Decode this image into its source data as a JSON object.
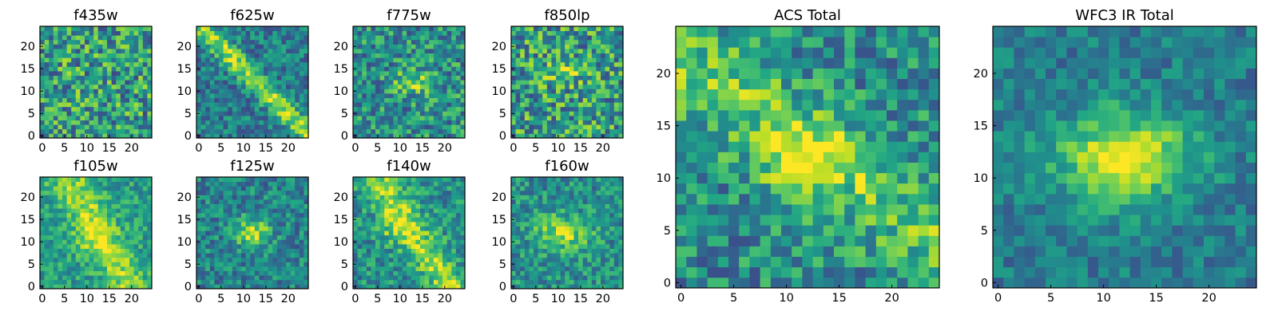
{
  "figure": {
    "background": "#ffffff",
    "colormap": "viridis"
  },
  "chart_data": [
    {
      "type": "heatmap",
      "title": "f435w",
      "grid_size": 25,
      "xlim": [
        0,
        24
      ],
      "ylim": [
        0,
        24
      ],
      "xticks": [
        0,
        5,
        10,
        15,
        20
      ],
      "yticks": [
        0,
        5,
        10,
        15,
        20
      ],
      "xtick_labels": [
        "0",
        "5",
        "10",
        "15",
        "20"
      ],
      "ytick_labels": [
        "0",
        "5",
        "10",
        "15",
        "20"
      ],
      "pattern": "noise",
      "seed": 11,
      "features": [],
      "noise_level": 0.55,
      "base": 0.55
    },
    {
      "type": "heatmap",
      "title": "f625w",
      "grid_size": 25,
      "xlim": [
        0,
        24
      ],
      "ylim": [
        0,
        24
      ],
      "xticks": [
        0,
        5,
        10,
        15,
        20
      ],
      "yticks": [
        0,
        5,
        10,
        15,
        20
      ],
      "xtick_labels": [
        "0",
        "5",
        "10",
        "15",
        "20"
      ],
      "ytick_labels": [
        "0",
        "5",
        "10",
        "15",
        "20"
      ],
      "pattern": "diagonal",
      "seed": 23,
      "features": [
        {
          "kind": "band",
          "angle": -45,
          "offset": 0,
          "width": 1.6,
          "amp": 0.45
        }
      ],
      "noise_level": 0.35,
      "base": 0.42
    },
    {
      "type": "heatmap",
      "title": "f775w",
      "grid_size": 25,
      "xlim": [
        0,
        24
      ],
      "ylim": [
        0,
        24
      ],
      "xticks": [
        0,
        5,
        10,
        15,
        20
      ],
      "yticks": [
        0,
        5,
        10,
        15,
        20
      ],
      "xtick_labels": [
        "0",
        "5",
        "10",
        "15",
        "20"
      ],
      "ytick_labels": [
        "0",
        "5",
        "10",
        "15",
        "20"
      ],
      "pattern": "blob",
      "seed": 37,
      "features": [
        {
          "kind": "blob",
          "cx": 13,
          "cy": 12,
          "sx": 3,
          "sy": 1.8,
          "amp": 0.35
        }
      ],
      "noise_level": 0.45,
      "base": 0.5
    },
    {
      "type": "heatmap",
      "title": "f850lp",
      "grid_size": 25,
      "xlim": [
        0,
        24
      ],
      "ylim": [
        0,
        24
      ],
      "xticks": [
        0,
        5,
        10,
        15,
        20
      ],
      "yticks": [
        0,
        5,
        10,
        15,
        20
      ],
      "xtick_labels": [
        "0",
        "5",
        "10",
        "15",
        "20"
      ],
      "ytick_labels": [
        "0",
        "5",
        "10",
        "15",
        "20"
      ],
      "pattern": "noise",
      "seed": 41,
      "features": [
        {
          "kind": "blob",
          "cx": 11,
          "cy": 14,
          "sx": 3,
          "sy": 2,
          "amp": 0.2
        }
      ],
      "noise_level": 0.55,
      "base": 0.55
    },
    {
      "type": "heatmap",
      "title": "f105w",
      "grid_size": 25,
      "xlim": [
        0,
        24
      ],
      "ylim": [
        0,
        24
      ],
      "xticks": [
        0,
        5,
        10,
        15,
        20
      ],
      "yticks": [
        0,
        5,
        10,
        15,
        20
      ],
      "xtick_labels": [
        "0",
        "5",
        "10",
        "15",
        "20"
      ],
      "ytick_labels": [
        "0",
        "5",
        "10",
        "15",
        "20"
      ],
      "pattern": "band",
      "seed": 53,
      "features": [
        {
          "kind": "band",
          "angle": -60,
          "offset": 0,
          "width": 3,
          "amp": 0.3
        },
        {
          "kind": "blob",
          "cx": 11,
          "cy": 11,
          "sx": 3,
          "sy": 3,
          "amp": 0.15
        }
      ],
      "noise_level": 0.3,
      "base": 0.55
    },
    {
      "type": "heatmap",
      "title": "f125w",
      "grid_size": 25,
      "xlim": [
        0,
        24
      ],
      "ylim": [
        0,
        24
      ],
      "xticks": [
        0,
        5,
        10,
        15,
        20
      ],
      "yticks": [
        0,
        5,
        10,
        15,
        20
      ],
      "xtick_labels": [
        "0",
        "5",
        "10",
        "15",
        "20"
      ],
      "ytick_labels": [
        "0",
        "5",
        "10",
        "15",
        "20"
      ],
      "pattern": "blob",
      "seed": 67,
      "features": [
        {
          "kind": "blob",
          "cx": 12,
          "cy": 12,
          "sx": 2.8,
          "sy": 2.2,
          "amp": 0.45
        }
      ],
      "noise_level": 0.35,
      "base": 0.45
    },
    {
      "type": "heatmap",
      "title": "f140w",
      "grid_size": 25,
      "xlim": [
        0,
        24
      ],
      "ylim": [
        0,
        24
      ],
      "xticks": [
        0,
        5,
        10,
        15,
        20
      ],
      "yticks": [
        0,
        5,
        10,
        15,
        20
      ],
      "xtick_labels": [
        "0",
        "5",
        "10",
        "15",
        "20"
      ],
      "ytick_labels": [
        "0",
        "5",
        "10",
        "15",
        "20"
      ],
      "pattern": "band",
      "seed": 79,
      "features": [
        {
          "kind": "band",
          "angle": -55,
          "offset": 0,
          "width": 2.6,
          "amp": 0.35
        },
        {
          "kind": "blob",
          "cx": 9,
          "cy": 13,
          "sx": 3,
          "sy": 2.5,
          "amp": 0.2
        }
      ],
      "noise_level": 0.35,
      "base": 0.5
    },
    {
      "type": "heatmap",
      "title": "f160w",
      "grid_size": 25,
      "xlim": [
        0,
        24
      ],
      "ylim": [
        0,
        24
      ],
      "xticks": [
        0,
        5,
        10,
        15,
        20
      ],
      "yticks": [
        0,
        5,
        10,
        15,
        20
      ],
      "xtick_labels": [
        "0",
        "5",
        "10",
        "15",
        "20"
      ],
      "ytick_labels": [
        "0",
        "5",
        "10",
        "15",
        "20"
      ],
      "pattern": "blob",
      "seed": 83,
      "features": [
        {
          "kind": "blob",
          "cx": 11,
          "cy": 12,
          "sx": 4,
          "sy": 2.6,
          "amp": 0.4
        }
      ],
      "noise_level": 0.35,
      "base": 0.5
    },
    {
      "type": "heatmap",
      "title": "ACS Total",
      "grid_size": 25,
      "xlim": [
        0,
        24
      ],
      "ylim": [
        0,
        24
      ],
      "xticks": [
        0,
        5,
        10,
        15,
        20
      ],
      "yticks": [
        0,
        5,
        10,
        15,
        20
      ],
      "xtick_labels": [
        "0",
        "5",
        "10",
        "15",
        "20"
      ],
      "ytick_labels": [
        "0",
        "5",
        "10",
        "15",
        "20"
      ],
      "pattern": "band+blob",
      "seed": 97,
      "features": [
        {
          "kind": "band",
          "angle": -35,
          "offset": 0,
          "width": 3.2,
          "amp": 0.25
        },
        {
          "kind": "blob",
          "cx": 12,
          "cy": 12,
          "sx": 3,
          "sy": 2,
          "amp": 0.4
        }
      ],
      "noise_level": 0.4,
      "base": 0.48
    },
    {
      "type": "heatmap",
      "title": "WFC3 IR Total",
      "grid_size": 25,
      "xlim": [
        0,
        24
      ],
      "ylim": [
        0,
        24
      ],
      "xticks": [
        0,
        5,
        10,
        15,
        20
      ],
      "yticks": [
        0,
        5,
        10,
        15,
        20
      ],
      "xtick_labels": [
        "0",
        "5",
        "10",
        "15",
        "20"
      ],
      "ytick_labels": [
        "0",
        "5",
        "10",
        "15",
        "20"
      ],
      "pattern": "blob",
      "seed": 101,
      "features": [
        {
          "kind": "blob",
          "cx": 12,
          "cy": 12,
          "sx": 4.5,
          "sy": 3,
          "amp": 0.55
        }
      ],
      "noise_level": 0.25,
      "base": 0.42
    }
  ]
}
